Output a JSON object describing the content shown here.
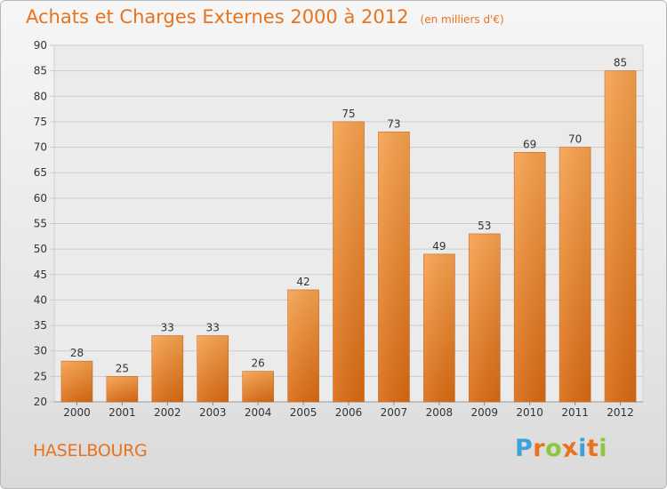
{
  "chart_data": {
    "type": "bar",
    "title": "Achats et Charges Externes 2000 à 2012",
    "subtitle": "(en milliers d'€)",
    "categories": [
      "2000",
      "2001",
      "2002",
      "2003",
      "2004",
      "2005",
      "2006",
      "2007",
      "2008",
      "2009",
      "2010",
      "2011",
      "2012"
    ],
    "values": [
      28,
      25,
      33,
      33,
      26,
      42,
      75,
      73,
      49,
      53,
      69,
      70,
      85
    ],
    "ylim": [
      20,
      90
    ],
    "yticks": [
      20,
      25,
      30,
      35,
      40,
      45,
      50,
      55,
      60,
      65,
      70,
      75,
      80,
      85,
      90
    ],
    "grid": true,
    "bar_color": "#f0923a",
    "title_color": "#e8731e"
  },
  "footer": {
    "place": "HASELBOURG",
    "logo": {
      "letters": [
        "P",
        "r",
        "o",
        "x",
        "i",
        "t",
        "i"
      ],
      "colors": [
        "#3aa3d8",
        "#e8731e",
        "#8dc63f",
        "#e8731e",
        "#3aa3d8",
        "#e8731e",
        "#8dc63f"
      ]
    }
  }
}
